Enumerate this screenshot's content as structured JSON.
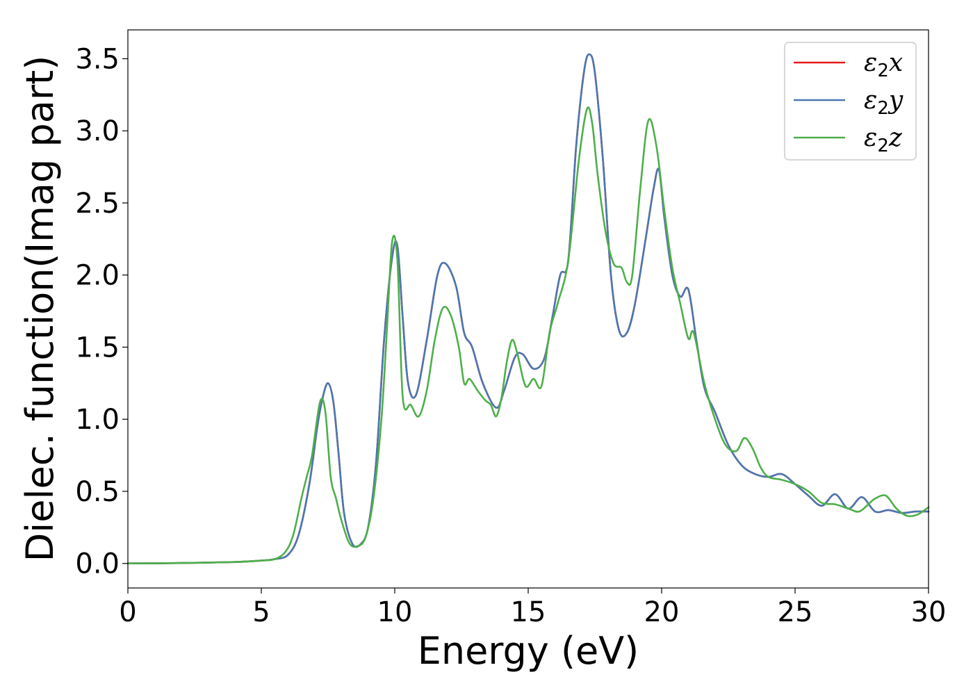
{
  "chart_data": {
    "type": "line",
    "title": "",
    "xlabel": "Energy (eV)",
    "ylabel": "Dielec. function(Imag part)",
    "xlim": [
      0,
      30
    ],
    "ylim": [
      -0.17,
      3.7
    ],
    "xticks": [
      0,
      5,
      10,
      15,
      20,
      25,
      30
    ],
    "xtick_labels": [
      "0",
      "5",
      "10",
      "15",
      "20",
      "25",
      "30"
    ],
    "yticks": [
      0.0,
      0.5,
      1.0,
      1.5,
      2.0,
      2.5,
      3.0,
      3.5
    ],
    "ytick_labels": [
      "0.0",
      "0.5",
      "1.0",
      "1.5",
      "2.0",
      "2.5",
      "3.0",
      "3.5"
    ],
    "grid": false,
    "legend_position": "top-right",
    "series": [
      {
        "name": "x",
        "legend_base": "ε",
        "legend_sub": "2",
        "legend_var": "x",
        "color": "#e41a1c",
        "x": [
          0,
          2,
          4,
          5,
          5.5,
          6.0,
          6.4,
          6.8,
          7.1,
          7.3,
          7.5,
          7.7,
          7.9,
          8.1,
          8.4,
          8.7,
          9.0,
          9.3,
          9.6,
          9.9,
          10.1,
          10.3,
          10.5,
          10.8,
          11.2,
          11.6,
          11.9,
          12.3,
          12.6,
          12.9,
          13.3,
          13.8,
          14.1,
          14.5,
          14.8,
          15.2,
          15.6,
          15.9,
          16.2,
          16.5,
          16.8,
          17.1,
          17.3,
          17.5,
          17.8,
          18.1,
          18.4,
          18.7,
          19.0,
          19.4,
          19.7,
          19.9,
          20.1,
          20.4,
          20.7,
          21.0,
          21.3,
          21.6,
          22.0,
          22.5,
          23.0,
          23.5,
          24.0,
          24.5,
          25.0,
          25.5,
          26.0,
          26.5,
          27.0,
          27.5,
          28.0,
          28.5,
          29.0,
          29.5,
          30.0
        ],
        "y": [
          0.0,
          0.003,
          0.01,
          0.02,
          0.03,
          0.06,
          0.2,
          0.55,
          0.95,
          1.15,
          1.25,
          1.12,
          0.75,
          0.35,
          0.14,
          0.13,
          0.25,
          0.7,
          1.55,
          2.12,
          2.2,
          1.7,
          1.25,
          1.17,
          1.55,
          2.0,
          2.08,
          1.92,
          1.6,
          1.5,
          1.25,
          1.08,
          1.2,
          1.43,
          1.45,
          1.35,
          1.42,
          1.7,
          2.0,
          2.1,
          2.9,
          3.42,
          3.53,
          3.4,
          2.8,
          2.0,
          1.62,
          1.6,
          1.8,
          2.25,
          2.6,
          2.73,
          2.4,
          2.0,
          1.85,
          1.9,
          1.55,
          1.22,
          1.05,
          0.82,
          0.68,
          0.62,
          0.6,
          0.62,
          0.55,
          0.47,
          0.4,
          0.48,
          0.38,
          0.46,
          0.36,
          0.37,
          0.35,
          0.36,
          0.36
        ]
      },
      {
        "name": "y",
        "legend_base": "ε",
        "legend_sub": "2",
        "legend_var": "y",
        "color": "#4a78b0",
        "x": [
          0,
          2,
          4,
          5,
          5.5,
          6.0,
          6.4,
          6.8,
          7.1,
          7.3,
          7.5,
          7.7,
          7.9,
          8.1,
          8.4,
          8.7,
          9.0,
          9.3,
          9.6,
          9.9,
          10.1,
          10.3,
          10.5,
          10.8,
          11.2,
          11.6,
          11.9,
          12.3,
          12.6,
          12.9,
          13.3,
          13.8,
          14.1,
          14.5,
          14.8,
          15.2,
          15.6,
          15.9,
          16.2,
          16.5,
          16.8,
          17.1,
          17.3,
          17.5,
          17.8,
          18.1,
          18.4,
          18.7,
          19.0,
          19.4,
          19.7,
          19.9,
          20.1,
          20.4,
          20.7,
          21.0,
          21.3,
          21.6,
          22.0,
          22.5,
          23.0,
          23.5,
          24.0,
          24.5,
          25.0,
          25.5,
          26.0,
          26.5,
          27.0,
          27.5,
          28.0,
          28.5,
          29.0,
          29.5,
          30.0
        ],
        "y": [
          0.0,
          0.003,
          0.01,
          0.02,
          0.03,
          0.06,
          0.2,
          0.55,
          0.95,
          1.15,
          1.25,
          1.12,
          0.75,
          0.35,
          0.14,
          0.13,
          0.25,
          0.7,
          1.55,
          2.12,
          2.2,
          1.7,
          1.25,
          1.17,
          1.55,
          2.0,
          2.08,
          1.92,
          1.6,
          1.5,
          1.25,
          1.08,
          1.2,
          1.43,
          1.45,
          1.35,
          1.42,
          1.7,
          2.0,
          2.1,
          2.9,
          3.42,
          3.53,
          3.4,
          2.8,
          2.0,
          1.62,
          1.6,
          1.8,
          2.25,
          2.6,
          2.73,
          2.4,
          2.0,
          1.85,
          1.9,
          1.55,
          1.22,
          1.05,
          0.82,
          0.68,
          0.62,
          0.6,
          0.62,
          0.55,
          0.47,
          0.4,
          0.48,
          0.38,
          0.46,
          0.36,
          0.37,
          0.35,
          0.36,
          0.36
        ]
      },
      {
        "name": "z",
        "legend_base": "ε",
        "legend_sub": "2",
        "legend_var": "z",
        "color": "#4daf4a",
        "x": [
          0,
          2,
          4,
          5,
          5.5,
          5.9,
          6.2,
          6.5,
          6.7,
          6.9,
          7.2,
          7.4,
          7.6,
          7.8,
          8.0,
          8.3,
          8.6,
          8.9,
          9.2,
          9.5,
          9.7,
          9.9,
          10.1,
          10.3,
          10.6,
          10.9,
          11.2,
          11.5,
          11.8,
          12.1,
          12.4,
          12.6,
          12.8,
          13.1,
          13.4,
          13.6,
          13.8,
          14.0,
          14.2,
          14.4,
          14.6,
          14.9,
          15.2,
          15.5,
          15.8,
          16.1,
          16.5,
          16.9,
          17.2,
          17.4,
          17.6,
          17.9,
          18.2,
          18.5,
          18.7,
          18.9,
          19.2,
          19.5,
          19.8,
          20.1,
          20.4,
          20.7,
          21.0,
          21.2,
          21.6,
          22.0,
          22.4,
          22.8,
          23.1,
          23.4,
          23.7,
          24.0,
          24.5,
          25.0,
          25.5,
          26.0,
          26.5,
          27.0,
          27.4,
          27.8,
          28.0,
          28.4,
          28.8,
          29.2,
          29.6,
          30.0
        ],
        "y": [
          0.0,
          0.003,
          0.01,
          0.02,
          0.03,
          0.08,
          0.2,
          0.45,
          0.6,
          0.75,
          1.12,
          1.05,
          0.6,
          0.45,
          0.3,
          0.14,
          0.12,
          0.18,
          0.45,
          1.0,
          1.6,
          2.23,
          2.1,
          1.15,
          1.1,
          1.02,
          1.2,
          1.55,
          1.77,
          1.72,
          1.5,
          1.25,
          1.28,
          1.2,
          1.13,
          1.1,
          1.02,
          1.15,
          1.4,
          1.55,
          1.45,
          1.23,
          1.28,
          1.23,
          1.6,
          1.8,
          2.1,
          2.8,
          3.15,
          3.05,
          2.7,
          2.3,
          2.08,
          2.05,
          1.95,
          2.0,
          2.6,
          3.07,
          2.9,
          2.45,
          2.05,
          1.8,
          1.56,
          1.6,
          1.25,
          1.0,
          0.82,
          0.78,
          0.87,
          0.8,
          0.67,
          0.6,
          0.58,
          0.55,
          0.5,
          0.42,
          0.41,
          0.38,
          0.36,
          0.42,
          0.45,
          0.47,
          0.38,
          0.33,
          0.34,
          0.39
        ]
      }
    ]
  }
}
